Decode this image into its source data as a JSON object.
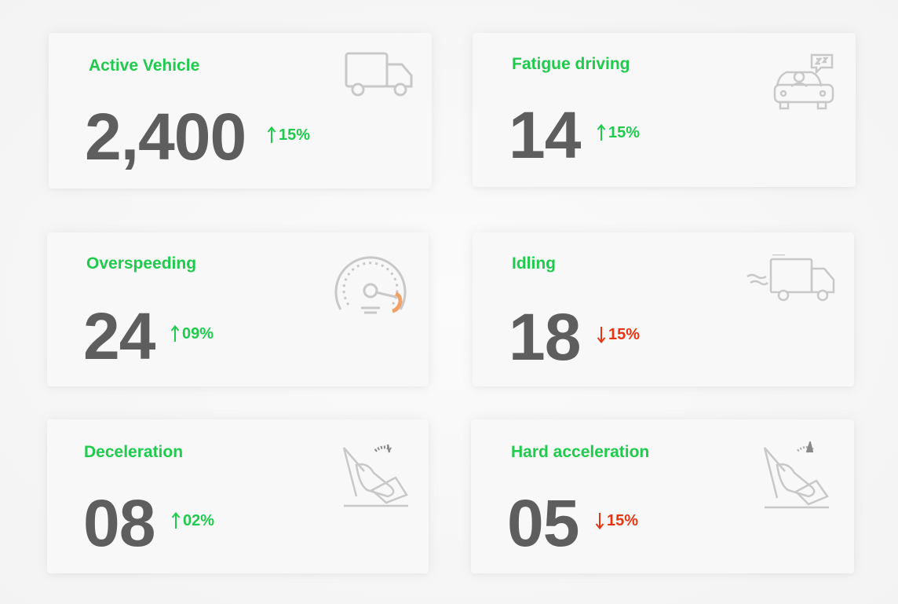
{
  "cards": [
    {
      "title": "Active Vehicle",
      "value": "2,400",
      "trend": "15%",
      "direction": "up",
      "icon": "truck-icon"
    },
    {
      "title": "Fatigue driving",
      "value": "14",
      "trend": "15%",
      "direction": "up",
      "icon": "sleepy-driver-icon"
    },
    {
      "title": "Overspeeding",
      "value": "24",
      "trend": "09%",
      "direction": "up",
      "icon": "speedometer-icon"
    },
    {
      "title": "Idling",
      "value": "18",
      "trend": "15%",
      "direction": "down",
      "icon": "idling-truck-icon"
    },
    {
      "title": "Deceleration",
      "value": "08",
      "trend": "02%",
      "direction": "up",
      "icon": "brake-pedal-icon"
    },
    {
      "title": "Hard acceleration",
      "value": "05",
      "trend": "15%",
      "direction": "down",
      "icon": "accelerator-pedal-icon"
    }
  ],
  "colors": {
    "title": "#1fca4c",
    "value": "#5e5e5e",
    "up": "#1fca4c",
    "down": "#e73513",
    "icon": "#c8c8c8",
    "icon_accent": "#f2a266"
  }
}
